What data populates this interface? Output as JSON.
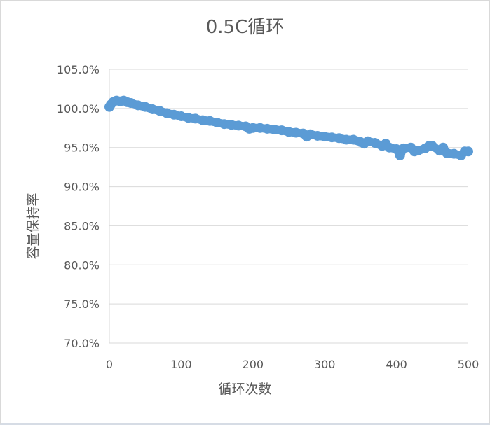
{
  "chart_data": {
    "type": "scatter",
    "title": "0.5C循环",
    "xlabel": "循环次数",
    "ylabel": "容量保持率",
    "xlim": [
      0,
      500
    ],
    "ylim": [
      70,
      105
    ],
    "x_ticks": [
      "0",
      "100",
      "200",
      "300",
      "400",
      "500"
    ],
    "y_ticks": [
      "70.0%",
      "75.0%",
      "80.0%",
      "85.0%",
      "90.0%",
      "95.0%",
      "100.0%",
      "105.0%"
    ],
    "grid": true,
    "legend": "none",
    "marker_color": "#5b9bd5",
    "series": [
      {
        "x": [
          0,
          2,
          5,
          10,
          15,
          20,
          25,
          30,
          40,
          50,
          60,
          70,
          80,
          90,
          100,
          110,
          120,
          130,
          140,
          150,
          160,
          170,
          180,
          190,
          195,
          200,
          210,
          220,
          230,
          240,
          250,
          260,
          270,
          275,
          280,
          290,
          300,
          310,
          320,
          330,
          340,
          350,
          355,
          360,
          370,
          380,
          385,
          390,
          400,
          405,
          410,
          420,
          425,
          430,
          440,
          445,
          450,
          460,
          465,
          470,
          480,
          490,
          495,
          500
        ],
        "y": [
          100.2,
          100.5,
          100.8,
          101.0,
          100.9,
          101.0,
          100.8,
          100.7,
          100.4,
          100.2,
          99.9,
          99.7,
          99.4,
          99.2,
          99.0,
          98.8,
          98.7,
          98.5,
          98.4,
          98.2,
          98.0,
          97.9,
          97.8,
          97.7,
          97.4,
          97.5,
          97.5,
          97.4,
          97.3,
          97.2,
          97.0,
          96.9,
          96.8,
          96.4,
          96.7,
          96.5,
          96.4,
          96.3,
          96.2,
          96.0,
          96.0,
          95.7,
          95.5,
          95.8,
          95.6,
          95.2,
          95.5,
          95.0,
          94.8,
          94.0,
          94.9,
          95.0,
          94.5,
          94.6,
          94.9,
          95.2,
          95.2,
          94.6,
          95.0,
          94.3,
          94.2,
          94.0,
          94.5,
          94.5
        ]
      }
    ]
  }
}
